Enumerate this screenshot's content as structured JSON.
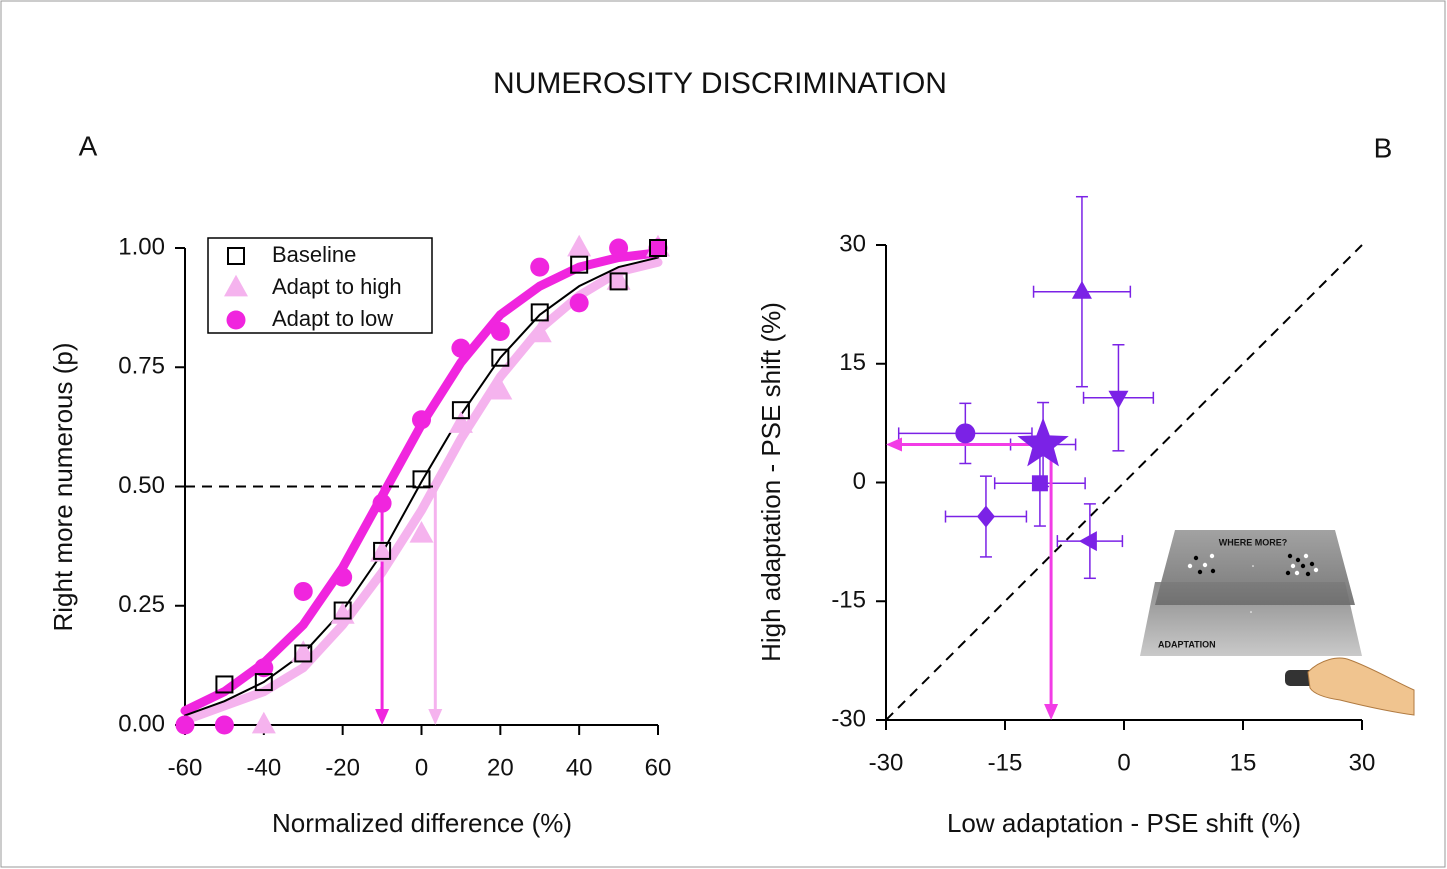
{
  "figure_title": "NUMEROSITY DISCRIMINATION",
  "chart_data": [
    {
      "type": "psychometric",
      "panel": "A",
      "x_label": "Normalized difference (%)",
      "y_label": "Right more numerous (p)",
      "xlim": [
        -60,
        60
      ],
      "xticks": [
        -60,
        -40,
        -20,
        0,
        20,
        40,
        60
      ],
      "ylim": [
        0,
        1
      ],
      "yticks": [
        {
          "value": 0,
          "label": "0.00"
        },
        {
          "value": 0.25,
          "label": "0.25"
        },
        {
          "value": 0.5,
          "label": "0.50"
        },
        {
          "value": 0.75,
          "label": "0.75"
        },
        {
          "value": 1,
          "label": "1.00"
        }
      ],
      "x": [
        -60,
        -50,
        -40,
        -30,
        -20,
        -10,
        0,
        10,
        20,
        30,
        40,
        50,
        60
      ],
      "fit_x": [
        -60,
        -50,
        -40,
        -30,
        -20,
        -10,
        0,
        10,
        20,
        30,
        40,
        50,
        60
      ],
      "reference_y": 0.5,
      "legend": "upper left",
      "series": [
        {
          "name": "Baseline",
          "color": "#000000",
          "marker": "square",
          "values": [
            null,
            0.085,
            0.09,
            0.15,
            0.24,
            0.365,
            0.515,
            0.66,
            0.77,
            0.865,
            0.965,
            0.93,
            1.0
          ],
          "fit_values": [
            0.02,
            0.05,
            0.09,
            0.15,
            0.24,
            0.36,
            0.51,
            0.65,
            0.77,
            0.86,
            0.92,
            0.96,
            0.98
          ]
        },
        {
          "name": "Adapt to high",
          "color": "#f5b3ee",
          "marker": "triangle-up",
          "values": [
            null,
            null,
            0.0,
            0.15,
            0.23,
            0.36,
            0.4,
            0.63,
            0.7,
            0.82,
            1.0,
            0.93,
            1.0
          ],
          "fit_values": [
            0.01,
            0.04,
            0.07,
            0.12,
            0.21,
            0.32,
            0.45,
            0.6,
            0.73,
            0.83,
            0.9,
            0.95,
            0.97
          ],
          "pse": 3.5
        },
        {
          "name": "Adapt to low",
          "color": "#f025de",
          "marker": "circle",
          "values": [
            0.0,
            0.0,
            0.12,
            0.28,
            0.31,
            0.465,
            0.64,
            0.79,
            0.825,
            0.96,
            0.885,
            1.0,
            1.0
          ],
          "fit_values": [
            0.03,
            0.07,
            0.13,
            0.21,
            0.33,
            0.48,
            0.63,
            0.76,
            0.86,
            0.92,
            0.96,
            0.98,
            0.99
          ],
          "pse": -10
        }
      ]
    },
    {
      "type": "scatter",
      "panel": "B",
      "x_label": "Low adaptation - PSE shift (%)",
      "y_label": "High adaptation - PSE shift (%)",
      "xlim": [
        -30,
        30
      ],
      "xticks": [
        -30,
        -15,
        0,
        15,
        30
      ],
      "ylim": [
        -30,
        30
      ],
      "yticks": [
        -30,
        -15,
        0,
        15,
        30
      ],
      "identity_line": true,
      "color": "#7b22e6",
      "arrow_color": "#f23ce6",
      "points": [
        {
          "marker": "triangle-up",
          "x": -5.3,
          "y": 24.1,
          "xerr": 6.1,
          "yerr": 12.0
        },
        {
          "marker": "triangle-down",
          "x": -0.7,
          "y": 10.7,
          "xerr": 4.4,
          "yerr": 6.7
        },
        {
          "marker": "circle",
          "x": -20.0,
          "y": 6.2,
          "xerr": 8.4,
          "yerr": 3.8
        },
        {
          "marker": "star",
          "x": -10.2,
          "y": 4.8,
          "xerr": 4.1,
          "yerr": 5.3,
          "arrows": true
        },
        {
          "marker": "square",
          "x": -10.6,
          "y": -0.1,
          "xerr": 5.7,
          "yerr": 5.4
        },
        {
          "marker": "diamond",
          "x": -17.4,
          "y": -4.3,
          "xerr": 5.1,
          "yerr": 5.1
        },
        {
          "marker": "triangle-left",
          "x": -4.3,
          "y": -7.4,
          "xerr": 4.1,
          "yerr": 4.7
        }
      ],
      "inset": {
        "top_label": "WHERE MORE?",
        "bottom_label": "ADAPTATION"
      }
    }
  ]
}
